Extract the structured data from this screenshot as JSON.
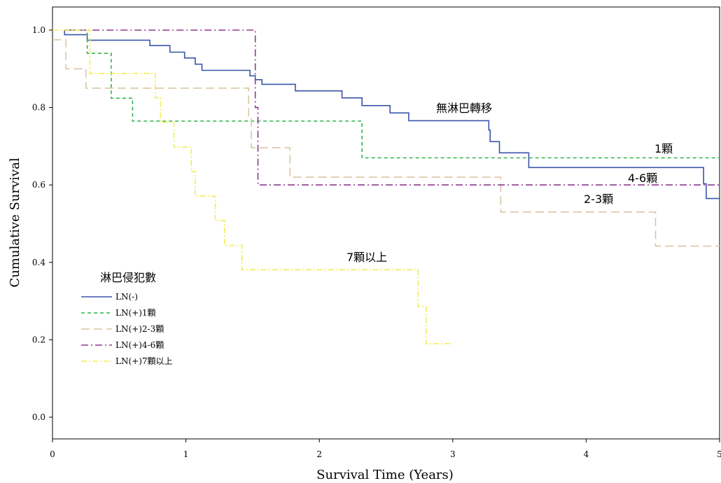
{
  "chart_data": {
    "type": "line",
    "xlabel": "Survival Time (Years)",
    "ylabel": "Cumulative Survival",
    "xlim": [
      0,
      5
    ],
    "ylim": [
      -0.055,
      1.065
    ],
    "xticks": [
      "0",
      "1",
      "2",
      "3",
      "4",
      "5"
    ],
    "yticks": [
      "0.0",
      "0.2",
      "0.4",
      "0.6",
      "0.8",
      "1.0"
    ],
    "grid": false,
    "legend": {
      "title": "淋巴侵犯數",
      "position": "left-middle",
      "entries": [
        "LN(-)",
        "LN(+)1顆",
        "LN(+)2-3顆",
        "LN(+)4-6顆",
        "LN(+)7顆以上"
      ]
    },
    "annotations": [
      "無淋巴轉移",
      "1顆",
      "4-6顆",
      "2-3顆",
      "7顆以上"
    ],
    "series": [
      {
        "name": "LN(-)",
        "color": "#3a55a8",
        "dash": "solid",
        "steps": [
          [
            0.09,
            1.0
          ],
          [
            0.09,
            0.988
          ],
          [
            0.26,
            0.974
          ],
          [
            0.73,
            0.96
          ],
          [
            0.88,
            0.943
          ],
          [
            0.99,
            0.928
          ],
          [
            1.07,
            0.912
          ],
          [
            1.12,
            0.896
          ],
          [
            1.48,
            0.882
          ],
          [
            1.52,
            0.872
          ],
          [
            1.57,
            0.86
          ],
          [
            1.82,
            0.843
          ],
          [
            2.17,
            0.825
          ],
          [
            2.32,
            0.805
          ],
          [
            2.53,
            0.786
          ],
          [
            2.67,
            0.766
          ],
          [
            3.27,
            0.742
          ],
          [
            3.28,
            0.712
          ],
          [
            3.35,
            0.683
          ],
          [
            3.57,
            0.645
          ],
          [
            4.88,
            0.603
          ],
          [
            4.9,
            0.565
          ],
          [
            5.0,
            0.565
          ]
        ]
      },
      {
        "name": "LN(+)1顆",
        "color": "#2fb34a",
        "dash": "5,4",
        "steps": [
          [
            0.09,
            1.0
          ],
          [
            0.26,
            0.94
          ],
          [
            0.44,
            0.824
          ],
          [
            0.6,
            0.765
          ],
          [
            2.32,
            0.67
          ],
          [
            5.0,
            0.67
          ]
        ]
      },
      {
        "name": "LN(+)2-3顆",
        "color": "#d9c7a2",
        "dash": "12,6",
        "steps": [
          [
            0.0,
            0.975
          ],
          [
            0.1,
            0.9
          ],
          [
            0.25,
            0.85
          ],
          [
            1.47,
            0.771
          ],
          [
            1.49,
            0.696
          ],
          [
            1.78,
            0.62
          ],
          [
            3.36,
            0.53
          ],
          [
            4.52,
            0.442
          ],
          [
            5.0,
            0.442
          ]
        ]
      },
      {
        "name": "LN(+)4-6顆",
        "color": "#8b3a8f",
        "dash": "10,4,2,4",
        "steps": [
          [
            0.09,
            1.0
          ],
          [
            1.52,
            0.8
          ],
          [
            1.54,
            0.6
          ],
          [
            5.0,
            0.6
          ]
        ]
      },
      {
        "name": "LN(+)7顆以上",
        "color": "#f2ee55",
        "dash": "8,3,2,3",
        "steps": [
          [
            0.0,
            1.0
          ],
          [
            0.28,
            0.888
          ],
          [
            0.77,
            0.825
          ],
          [
            0.81,
            0.762
          ],
          [
            0.91,
            0.698
          ],
          [
            1.04,
            0.635
          ],
          [
            1.07,
            0.571
          ],
          [
            1.22,
            0.508
          ],
          [
            1.29,
            0.444
          ],
          [
            1.42,
            0.381
          ],
          [
            2.74,
            0.286
          ],
          [
            2.8,
            0.19
          ],
          [
            3.0,
            0.19
          ]
        ]
      }
    ]
  }
}
